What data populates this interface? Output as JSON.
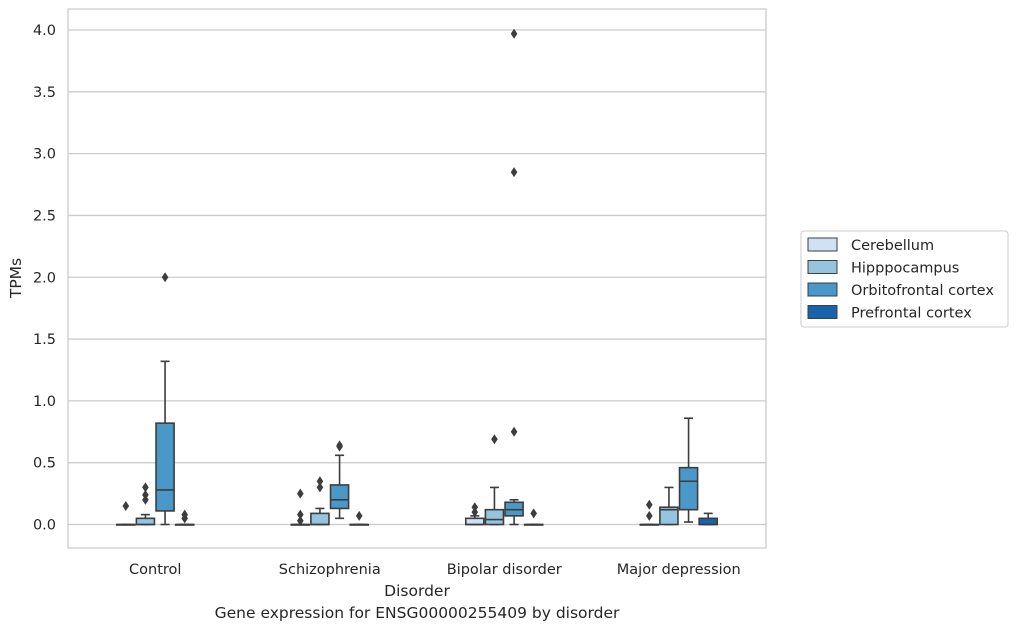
{
  "chart_data": {
    "type": "box",
    "caption": "Gene expression for ENSG00000255409 by disorder",
    "xlabel": "Disorder",
    "ylabel": "TPMs",
    "ylim": [
      -0.19,
      4.17
    ],
    "yticks": [
      "0.0",
      "0.5",
      "1.0",
      "1.5",
      "2.0",
      "2.5",
      "3.0",
      "3.5",
      "4.0"
    ],
    "grid": "horizontal",
    "legend_position": "right",
    "categories": [
      "Control",
      "Schizophrenia",
      "Bipolar disorder",
      "Major depression"
    ],
    "series": [
      {
        "name": "Cerebellum",
        "color": "#d0e1f2",
        "boxes": [
          {
            "low": 0.0,
            "q1": 0.0,
            "median": 0.0,
            "q3": 0.0,
            "high": 0.0,
            "outliers": [
              0.15
            ]
          },
          {
            "low": 0.0,
            "q1": 0.0,
            "median": 0.0,
            "q3": 0.0,
            "high": 0.0,
            "outliers": [
              0.03,
              0.08,
              0.25
            ]
          },
          {
            "low": 0.0,
            "q1": 0.0,
            "median": 0.0,
            "q3": 0.05,
            "high": 0.07,
            "outliers": [
              0.1,
              0.14
            ]
          },
          {
            "low": 0.0,
            "q1": 0.0,
            "median": 0.0,
            "q3": 0.0,
            "high": 0.0,
            "outliers": [
              0.07,
              0.16
            ]
          }
        ]
      },
      {
        "name": "Hipppocampus",
        "color": "#94c4df",
        "boxes": [
          {
            "low": 0.0,
            "q1": 0.0,
            "median": 0.0,
            "q3": 0.05,
            "high": 0.08,
            "outliers": [
              0.2,
              0.24,
              0.3
            ]
          },
          {
            "low": 0.0,
            "q1": 0.0,
            "median": 0.0,
            "q3": 0.09,
            "high": 0.13,
            "outliers": [
              0.3,
              0.35
            ]
          },
          {
            "low": 0.0,
            "q1": 0.0,
            "median": 0.04,
            "q3": 0.12,
            "high": 0.3,
            "outliers": [
              0.69
            ]
          },
          {
            "low": 0.0,
            "q1": 0.0,
            "median": 0.12,
            "q3": 0.14,
            "high": 0.3,
            "outliers": []
          }
        ]
      },
      {
        "name": "Orbitofrontal cortex",
        "color": "#4a98c9",
        "boxes": [
          {
            "low": 0.0,
            "q1": 0.11,
            "median": 0.28,
            "q3": 0.82,
            "high": 1.32,
            "outliers": [
              2.0
            ]
          },
          {
            "low": 0.05,
            "q1": 0.13,
            "median": 0.2,
            "q3": 0.32,
            "high": 0.56,
            "outliers": [
              0.63,
              0.64
            ]
          },
          {
            "low": 0.0,
            "q1": 0.07,
            "median": 0.12,
            "q3": 0.18,
            "high": 0.2,
            "outliers": [
              0.75,
              2.85,
              3.97
            ]
          },
          {
            "low": 0.02,
            "q1": 0.12,
            "median": 0.35,
            "q3": 0.46,
            "high": 0.86,
            "outliers": []
          }
        ]
      },
      {
        "name": "Prefrontal cortex",
        "color": "#1764ab",
        "boxes": [
          {
            "low": 0.0,
            "q1": 0.0,
            "median": 0.0,
            "q3": 0.0,
            "high": 0.0,
            "outliers": [
              0.05,
              0.08
            ]
          },
          {
            "low": 0.0,
            "q1": 0.0,
            "median": 0.0,
            "q3": 0.0,
            "high": 0.0,
            "outliers": [
              0.07
            ]
          },
          {
            "low": 0.0,
            "q1": 0.0,
            "median": 0.0,
            "q3": 0.0,
            "high": 0.0,
            "outliers": [
              0.09
            ]
          },
          {
            "low": 0.0,
            "q1": 0.0,
            "median": 0.0,
            "q3": 0.05,
            "high": 0.09,
            "outliers": []
          }
        ]
      }
    ]
  }
}
